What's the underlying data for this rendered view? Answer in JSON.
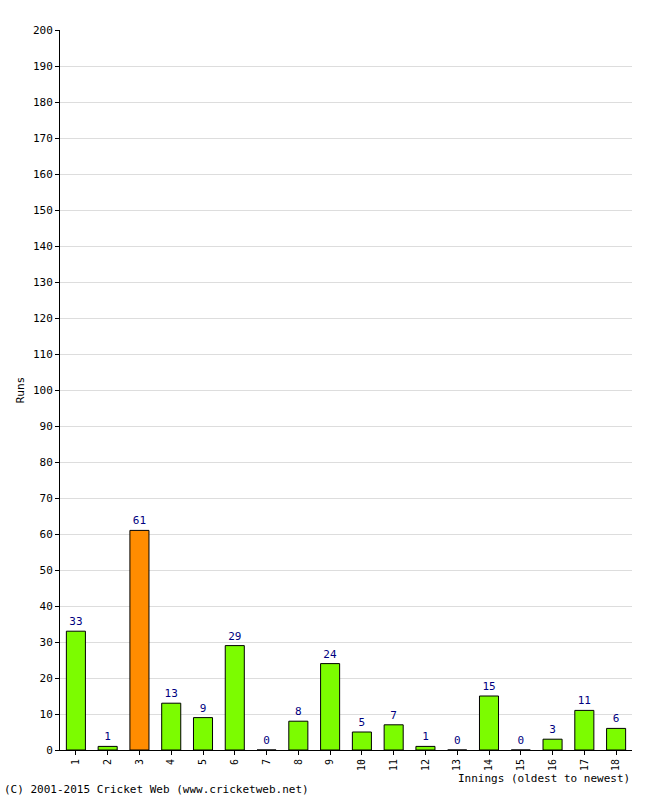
{
  "chart_data": {
    "type": "bar",
    "x_label": "Innings (oldest to newest)",
    "y_label": "Runs",
    "annotations": [
      "(C) 2001-2015 Cricket Web (www.cricketweb.net)"
    ],
    "categories": [
      "1",
      "2",
      "3",
      "4",
      "5",
      "6",
      "7",
      "8",
      "9",
      "10",
      "11",
      "12",
      "13",
      "14",
      "15",
      "16",
      "17",
      "18"
    ],
    "values": [
      33,
      1,
      61,
      13,
      9,
      29,
      0,
      8,
      24,
      5,
      7,
      1,
      0,
      15,
      0,
      3,
      11,
      6
    ],
    "colors": [
      "#7cfc00",
      "#7cfc00",
      "#ff8c00",
      "#7cfc00",
      "#7cfc00",
      "#7cfc00",
      "#7cfc00",
      "#7cfc00",
      "#7cfc00",
      "#7cfc00",
      "#7cfc00",
      "#7cfc00",
      "#7cfc00",
      "#7cfc00",
      "#7cfc00",
      "#7cfc00",
      "#7cfc00",
      "#7cfc00"
    ],
    "ylim": [
      0,
      200
    ],
    "yticks": [
      0,
      10,
      20,
      30,
      40,
      50,
      60,
      70,
      80,
      90,
      100,
      110,
      120,
      130,
      140,
      150,
      160,
      170,
      180,
      190,
      200
    ],
    "grid": true,
    "data_labels": true
  }
}
